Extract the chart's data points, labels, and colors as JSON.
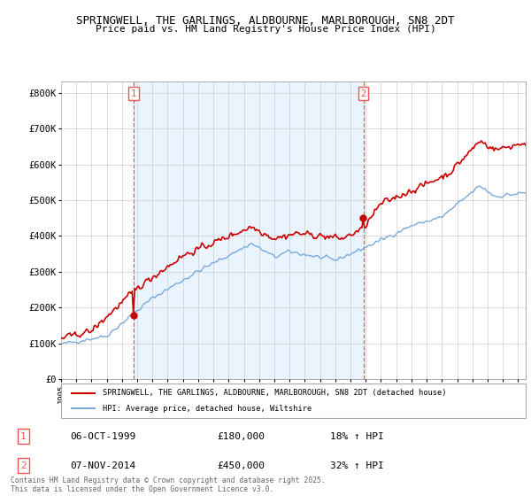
{
  "title_line1": "SPRINGWELL, THE GARLINGS, ALDBOURNE, MARLBOROUGH, SN8 2DT",
  "title_line2": "Price paid vs. HM Land Registry's House Price Index (HPI)",
  "background_color": "#ffffff",
  "plot_bg_color": "#ffffff",
  "plot_fill_color": "#ddeeff",
  "grid_color": "#cccccc",
  "red_line_color": "#cc0000",
  "blue_line_color": "#7aaadd",
  "dashed_line_color": "#ee5555",
  "legend_label_red": "SPRINGWELL, THE GARLINGS, ALDBOURNE, MARLBOROUGH, SN8 2DT (detached house)",
  "legend_label_blue": "HPI: Average price, detached house, Wiltshire",
  "transaction1_date": "06-OCT-1999",
  "transaction1_price": "£180,000",
  "transaction1_hpi": "18% ↑ HPI",
  "transaction2_date": "07-NOV-2014",
  "transaction2_price": "£450,000",
  "transaction2_hpi": "32% ↑ HPI",
  "footer_text": "Contains HM Land Registry data © Crown copyright and database right 2025.\nThis data is licensed under the Open Government Licence v3.0.",
  "ylim_min": 0,
  "ylim_max": 830000,
  "yticks": [
    0,
    100000,
    200000,
    300000,
    400000,
    500000,
    600000,
    700000,
    800000
  ],
  "ytick_labels": [
    "£0",
    "£100K",
    "£200K",
    "£300K",
    "£400K",
    "£500K",
    "£600K",
    "£700K",
    "£800K"
  ],
  "xmin": 1995.0,
  "xmax": 2025.5,
  "transaction1_x": 1999.77,
  "transaction2_x": 2014.85
}
